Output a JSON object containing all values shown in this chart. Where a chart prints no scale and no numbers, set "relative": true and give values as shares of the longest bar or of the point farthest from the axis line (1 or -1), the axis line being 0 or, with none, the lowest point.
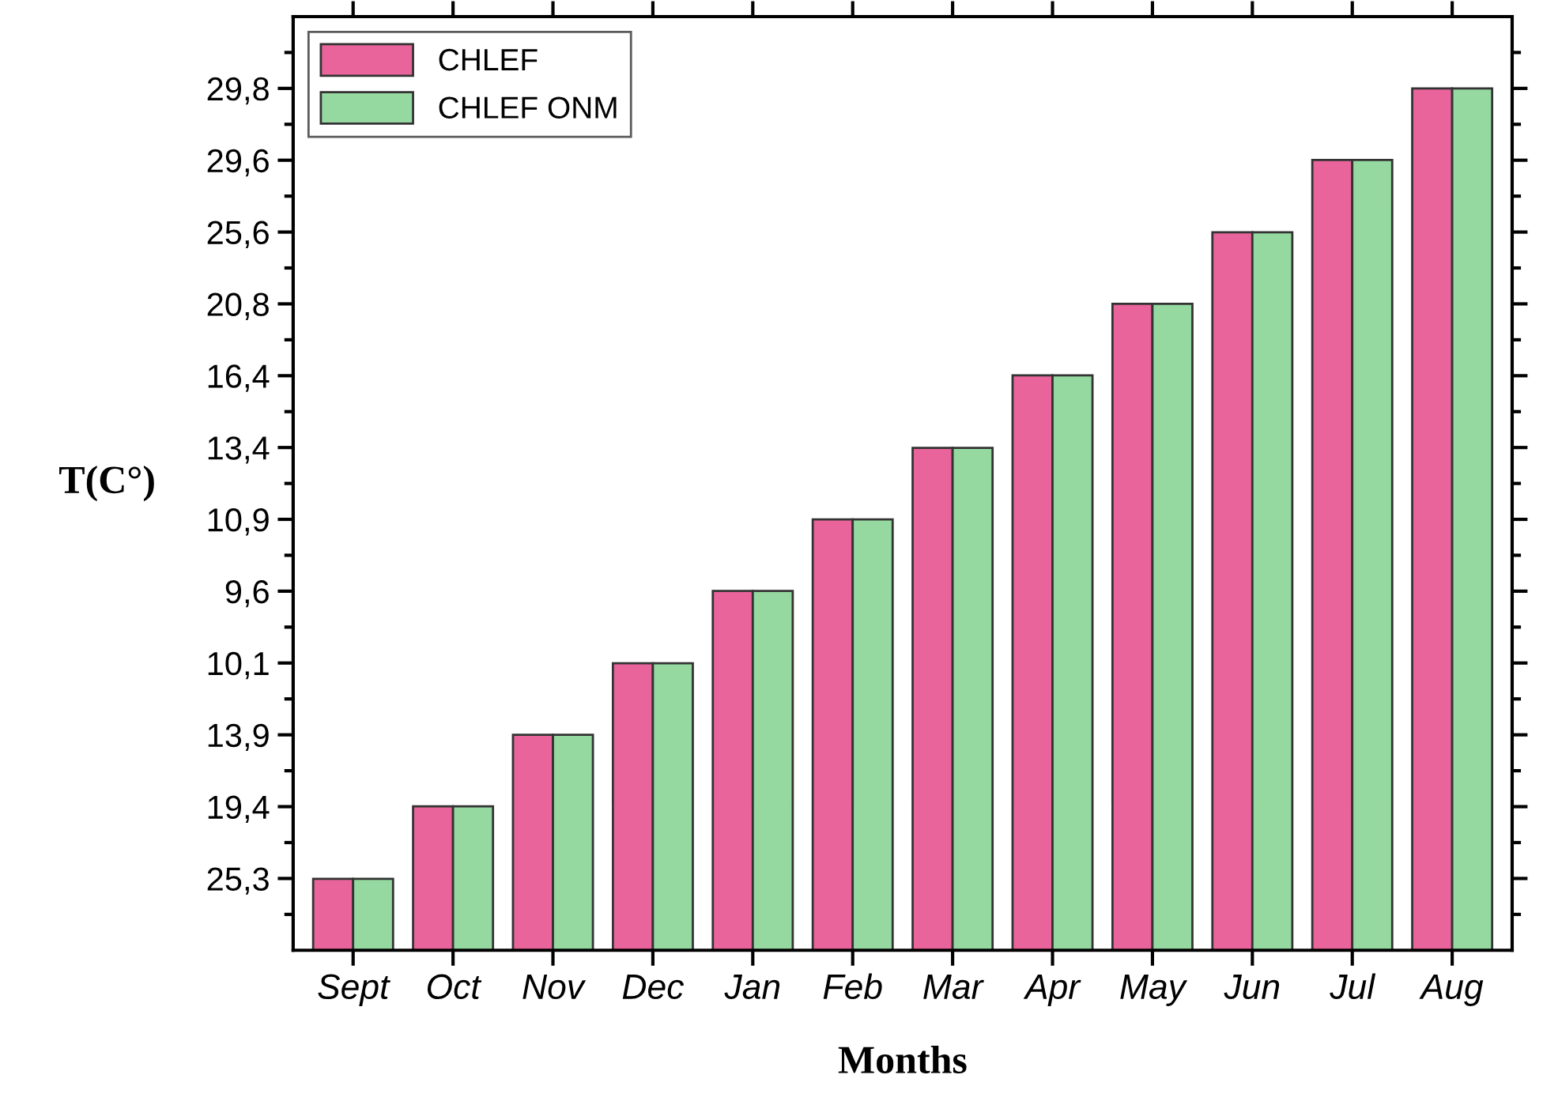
{
  "chart_data": {
    "type": "bar",
    "xlabel": "Months",
    "ylabel": "T(C°)",
    "relative": true,
    "categories": [
      "Sept",
      "Oct",
      "Nov",
      "Dec",
      "Jan",
      "Feb",
      "Mar",
      "Apr",
      "May",
      "Jun",
      "Jul",
      "Aug"
    ],
    "series": [
      {
        "name": "CHLEF",
        "color": "#e8649a",
        "values": [
          0.083,
          0.167,
          0.25,
          0.333,
          0.417,
          0.5,
          0.583,
          0.667,
          0.75,
          0.833,
          0.917,
          1
        ]
      },
      {
        "name": "CHLEF ONM",
        "color": "#95d8a0",
        "values": [
          0.083,
          0.167,
          0.25,
          0.333,
          0.417,
          0.5,
          0.583,
          0.667,
          0.75,
          0.833,
          0.917,
          1
        ]
      }
    ],
    "annotations": [
      "25,3",
      "19,4",
      "13,9",
      "10,1",
      "9,6",
      "10,9",
      "13,4",
      "16,4",
      "20,8",
      "25,6",
      "29,6",
      "29,8"
    ],
    "grid": false,
    "legend": "top left"
  }
}
